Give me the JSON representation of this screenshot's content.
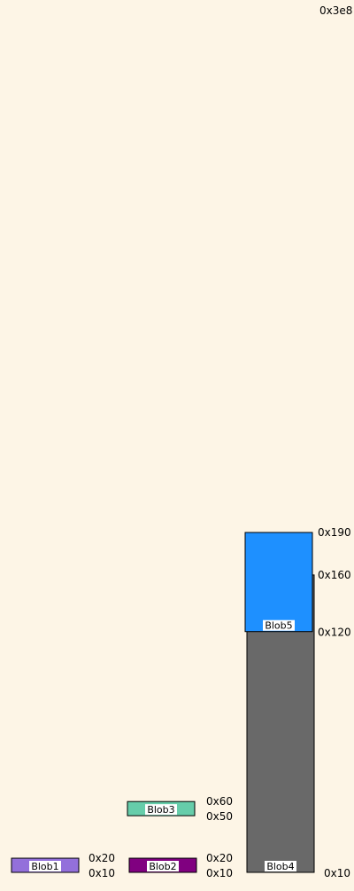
{
  "memory_map": {
    "top_address": "0x3e8",
    "blobs": [
      {
        "name": "Blob1",
        "color": "#9370db",
        "low_label": "0x10",
        "high_label": "0x20",
        "start": 16,
        "end": 32
      },
      {
        "name": "Blob2",
        "color": "#800080",
        "low_label": "0x10",
        "high_label": "0x20",
        "start": 16,
        "end": 32
      },
      {
        "name": "Blob3",
        "color": "#66cdaa",
        "low_label": "0x50",
        "high_label": "0x60",
        "start": 80,
        "end": 96
      },
      {
        "name": "Blob4",
        "color": "#696969",
        "low_label": "0x10",
        "high_label": "0x160",
        "start": 16,
        "end": 352
      },
      {
        "name": "Blob5",
        "color": "#1e90ff",
        "low_label": "0x120",
        "high_label": "0x190",
        "start": 288,
        "end": 400
      }
    ]
  }
}
